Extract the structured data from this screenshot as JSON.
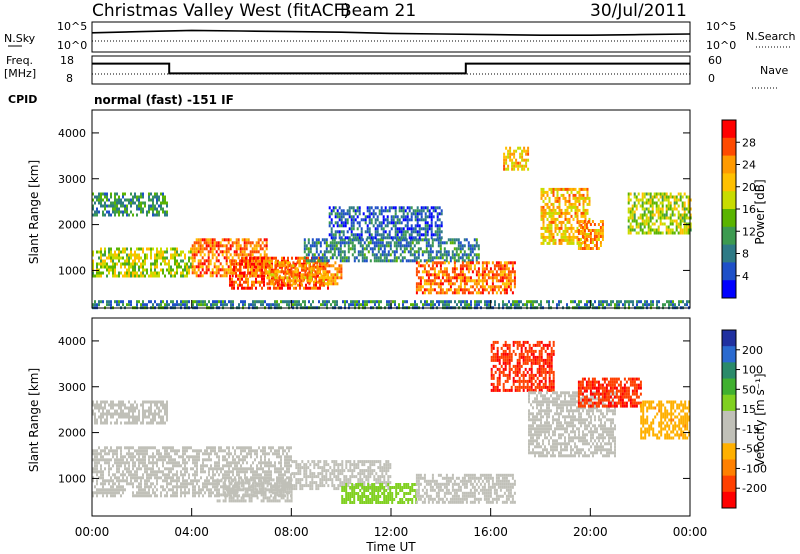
{
  "header": {
    "station": "Christmas Valley West (fitACF)",
    "beam": "Beam 21",
    "date": "30/Jul/2011"
  },
  "noise_panel": {
    "left_label": "N.Sky",
    "right_label": "N.Search",
    "left_ticks": [
      "10^5",
      "10^0"
    ],
    "right_ticks": [
      "10^5",
      "10^0"
    ]
  },
  "freq_panel": {
    "left_label_1": "Freq.",
    "left_label_2": "[MHz]",
    "right_label": "Nave",
    "left_ticks": [
      "18",
      "8"
    ],
    "right_ticks": [
      "60",
      "0"
    ]
  },
  "cpid": {
    "label": "CPID",
    "text": "normal (fast) -151 IF"
  },
  "axes": {
    "ylabel": "Slant Range [km]",
    "y_ticks": [
      "4000",
      "3000",
      "2000",
      "1000"
    ],
    "x_ticks": [
      "00:00",
      "04:00",
      "08:00",
      "12:00",
      "16:00",
      "20:00",
      "00:00"
    ],
    "xlabel": "Time UT"
  },
  "power_colorbar": {
    "label": "Power [dB]",
    "ticks": [
      "28",
      "24",
      "20",
      "16",
      "12",
      "8",
      "4"
    ],
    "colors": [
      "#ff0000",
      "#ff4a00",
      "#ff9a00",
      "#ffc000",
      "#c8dc00",
      "#5ab400",
      "#3c9a50",
      "#2e7a86",
      "#1e50c8",
      "#0000ff"
    ]
  },
  "velocity_colorbar": {
    "label": "Velocity [m s⁻¹]",
    "ticks": [
      "200",
      "100",
      "50",
      "15",
      "-15",
      "-50",
      "-100",
      "-200"
    ],
    "colors": [
      "#2030a0",
      "#2a6ad0",
      "#2a8a6a",
      "#40b030",
      "#80d020",
      "#c0c0b8",
      "#c0c0b8",
      "#ffb000",
      "#ff8000",
      "#ff4000",
      "#ff0000"
    ]
  },
  "chart_data": [
    {
      "type": "line",
      "title": "N.Sky / N.Search",
      "x": [
        0,
        2,
        4,
        6,
        8,
        10,
        12,
        14,
        16,
        18,
        20,
        22,
        24
      ],
      "series": [
        {
          "name": "N.Sky",
          "values": [
            3.2,
            3.4,
            3.6,
            3.5,
            3.4,
            3.3,
            3.1,
            3.0,
            2.9,
            2.8,
            2.8,
            2.9,
            3.0
          ]
        }
      ],
      "ylim": [
        0,
        5
      ]
    },
    {
      "type": "line",
      "title": "Freq.",
      "x": [
        0,
        3.1,
        3.1,
        15.0,
        15.0,
        24
      ],
      "series": [
        {
          "name": "Freq.",
          "values": [
            15.3,
            15.3,
            11.8,
            11.8,
            15.3,
            15.3
          ]
        }
      ],
      "ylim": [
        8,
        18
      ]
    },
    {
      "type": "heatmap",
      "title": "Power [dB]",
      "xlabel": "Time UT",
      "ylabel": "Slant Range [km]",
      "xlim": [
        0,
        24
      ],
      "ylim": [
        180,
        4500
      ],
      "zlim": [
        0,
        30
      ],
      "regions": [
        {
          "t": [
            0.0,
            3.0
          ],
          "range": [
            2200,
            2700
          ],
          "power": 10
        },
        {
          "t": [
            0.0,
            4.0
          ],
          "range": [
            850,
            1500
          ],
          "power": 16
        },
        {
          "t": [
            4.0,
            7.0
          ],
          "range": [
            900,
            1700
          ],
          "power": 24
        },
        {
          "t": [
            5.5,
            9.5
          ],
          "range": [
            600,
            1300
          ],
          "power": 26
        },
        {
          "t": [
            7.0,
            10.0
          ],
          "range": [
            700,
            1200
          ],
          "power": 22
        },
        {
          "t": [
            8.5,
            15.5
          ],
          "range": [
            1200,
            1700
          ],
          "power": 8
        },
        {
          "t": [
            9.5,
            14.0
          ],
          "range": [
            1700,
            2400
          ],
          "power": 6
        },
        {
          "t": [
            13.0,
            17.0
          ],
          "range": [
            500,
            1200
          ],
          "power": 24
        },
        {
          "t": [
            16.5,
            17.5
          ],
          "range": [
            3200,
            3700
          ],
          "power": 20
        },
        {
          "t": [
            18.0,
            20.0
          ],
          "range": [
            1600,
            2800
          ],
          "power": 20
        },
        {
          "t": [
            19.5,
            20.5
          ],
          "range": [
            1500,
            2100
          ],
          "power": 22
        },
        {
          "t": [
            21.5,
            24.0
          ],
          "range": [
            1800,
            2700
          ],
          "power": 16
        },
        {
          "t": [
            0.0,
            24.0
          ],
          "range": [
            180,
            350
          ],
          "power": 8
        }
      ]
    },
    {
      "type": "heatmap",
      "title": "Velocity [m s⁻¹]",
      "xlabel": "Time UT",
      "ylabel": "Slant Range [km]",
      "xlim": [
        0,
        24
      ],
      "ylim": [
        180,
        4500
      ],
      "zlim": [
        -200,
        200
      ],
      "regions": [
        {
          "t": [
            0.0,
            3.0
          ],
          "range": [
            2200,
            2700
          ],
          "velocity": 0
        },
        {
          "t": [
            0.0,
            8.0
          ],
          "range": [
            600,
            1700
          ],
          "velocity": 0
        },
        {
          "t": [
            5.0,
            8.0
          ],
          "range": [
            500,
            1000
          ],
          "velocity": -40
        },
        {
          "t": [
            8.0,
            12.0
          ],
          "range": [
            800,
            1400
          ],
          "velocity": 0
        },
        {
          "t": [
            10.0,
            13.0
          ],
          "range": [
            500,
            900
          ],
          "velocity": 40
        },
        {
          "t": [
            13.0,
            17.0
          ],
          "range": [
            500,
            1100
          ],
          "velocity": 0
        },
        {
          "t": [
            16.0,
            18.5
          ],
          "range": [
            2900,
            4000
          ],
          "velocity": -200
        },
        {
          "t": [
            17.5,
            21.0
          ],
          "range": [
            1500,
            2900
          ],
          "velocity": 0
        },
        {
          "t": [
            19.5,
            22.0
          ],
          "range": [
            2600,
            3200
          ],
          "velocity": -200
        },
        {
          "t": [
            22.0,
            24.0
          ],
          "range": [
            1900,
            2700
          ],
          "velocity": -100
        }
      ]
    }
  ]
}
